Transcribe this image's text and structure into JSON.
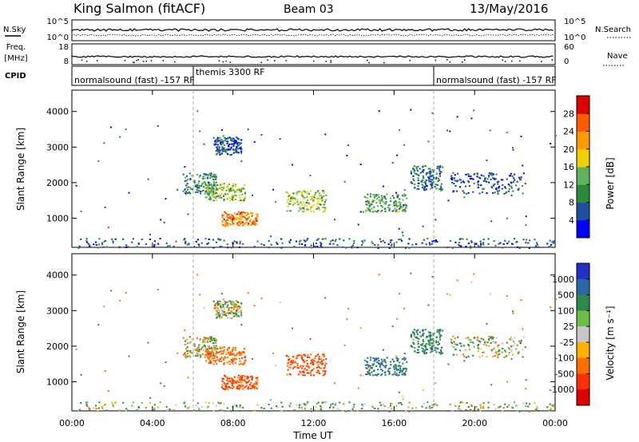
{
  "header": {
    "station": "King Salmon (fitACF)",
    "beam": "Beam 03",
    "date": "13/May/2016"
  },
  "strip_labels": {
    "nsky": "N.Sky",
    "nsky_ticks": [
      "10^5",
      "10^0"
    ],
    "nsearch": "N.Search",
    "nsearch_ticks": [
      "10^5",
      "10^0"
    ],
    "freq_line1": "Freq.",
    "freq_line2": "[MHz]",
    "freq_ticks": [
      "18",
      "8"
    ],
    "nave": "Nave",
    "nave_ticks": [
      "60",
      "0"
    ],
    "cpid": "CPID"
  },
  "cpid_annotations": [
    {
      "text": "normalsound (fast) -157 RF",
      "start_hour": 0.0
    },
    {
      "text": "themis 3300 RF",
      "start_hour": 6.0
    },
    {
      "text": "normalsound (fast) -157 RF",
      "start_hour": 18.0
    }
  ],
  "x_axis": {
    "label": "Time UT",
    "ticks": [
      "00:00",
      "04:00",
      "08:00",
      "12:00",
      "16:00",
      "20:00",
      "00:00"
    ],
    "tick_hours": [
      0,
      4,
      8,
      12,
      16,
      20,
      24
    ],
    "range_hours": [
      0,
      24
    ]
  },
  "y_axis": {
    "label": "Slant Range [km]",
    "ticks": [
      "1000",
      "2000",
      "3000",
      "4000"
    ],
    "tick_values": [
      1000,
      2000,
      3000,
      4000
    ],
    "range_km": [
      180,
      4600
    ]
  },
  "power_colorbar": {
    "label": "Power [dB]",
    "ticks": [
      "4",
      "8",
      "12",
      "16",
      "20",
      "24",
      "28"
    ],
    "tick_values": [
      4,
      8,
      12,
      16,
      20,
      24,
      28
    ],
    "range": [
      0,
      32
    ],
    "colors": [
      "#0000ff",
      "#1f4fa0",
      "#2b8a3a",
      "#5fb35a",
      "#f0d000",
      "#ff9a00",
      "#ff5a00",
      "#e00000"
    ]
  },
  "velocity_colorbar": {
    "label": "Velocity [m s⁻¹]",
    "ticks": [
      "1000",
      "500",
      "100",
      "25",
      "-25",
      "-100",
      "-500",
      "-1000"
    ],
    "colors": [
      "#2030c8",
      "#2a66a8",
      "#2e8a4a",
      "#6cc04a",
      "#c8c8c8",
      "#ffb000",
      "#ff7000",
      "#ff3000",
      "#e00000"
    ]
  },
  "chart_data": {
    "type": "heatmap",
    "title": "King Salmon (fitACF) Beam 03 13/May/2016",
    "xlabel": "Time UT",
    "ylabel": "Slant Range [km]",
    "xlim_hours": [
      0,
      24
    ],
    "ylim_km": [
      180,
      4600
    ],
    "grid": false,
    "panels": [
      "Power [dB]",
      "Velocity [m s⁻¹]"
    ],
    "scatter_regions": [
      {
        "t_start": 5.5,
        "t_end": 7.2,
        "r_min": 1700,
        "r_max": 2300,
        "power_db": 10,
        "velocity": 10
      },
      {
        "t_start": 6.6,
        "t_end": 8.6,
        "r_min": 1500,
        "r_max": 2000,
        "power_db": 14,
        "velocity": -200
      },
      {
        "t_start": 7.0,
        "t_end": 8.4,
        "r_min": 2800,
        "r_max": 3300,
        "power_db": 6,
        "velocity": 0
      },
      {
        "t_start": 7.4,
        "t_end": 9.2,
        "r_min": 800,
        "r_max": 1200,
        "power_db": 24,
        "velocity": -300
      },
      {
        "t_start": 10.6,
        "t_end": 12.6,
        "r_min": 1200,
        "r_max": 1800,
        "power_db": 15,
        "velocity": -300
      },
      {
        "t_start": 14.5,
        "t_end": 16.6,
        "r_min": 1200,
        "r_max": 1700,
        "power_db": 12,
        "velocity": 300
      },
      {
        "t_start": 16.8,
        "t_end": 18.4,
        "r_min": 1800,
        "r_max": 2500,
        "power_db": 8,
        "velocity": 200
      },
      {
        "t_start": 18.8,
        "t_end": 22.5,
        "r_min": 1700,
        "r_max": 2300,
        "power_db": 6,
        "velocity": 20
      },
      {
        "t_start": 0.0,
        "t_end": 24.0,
        "r_min": 180,
        "r_max": 450,
        "power_db": 6,
        "velocity": 50
      }
    ],
    "cpid_change_hours": [
      6.0,
      18.0
    ]
  }
}
